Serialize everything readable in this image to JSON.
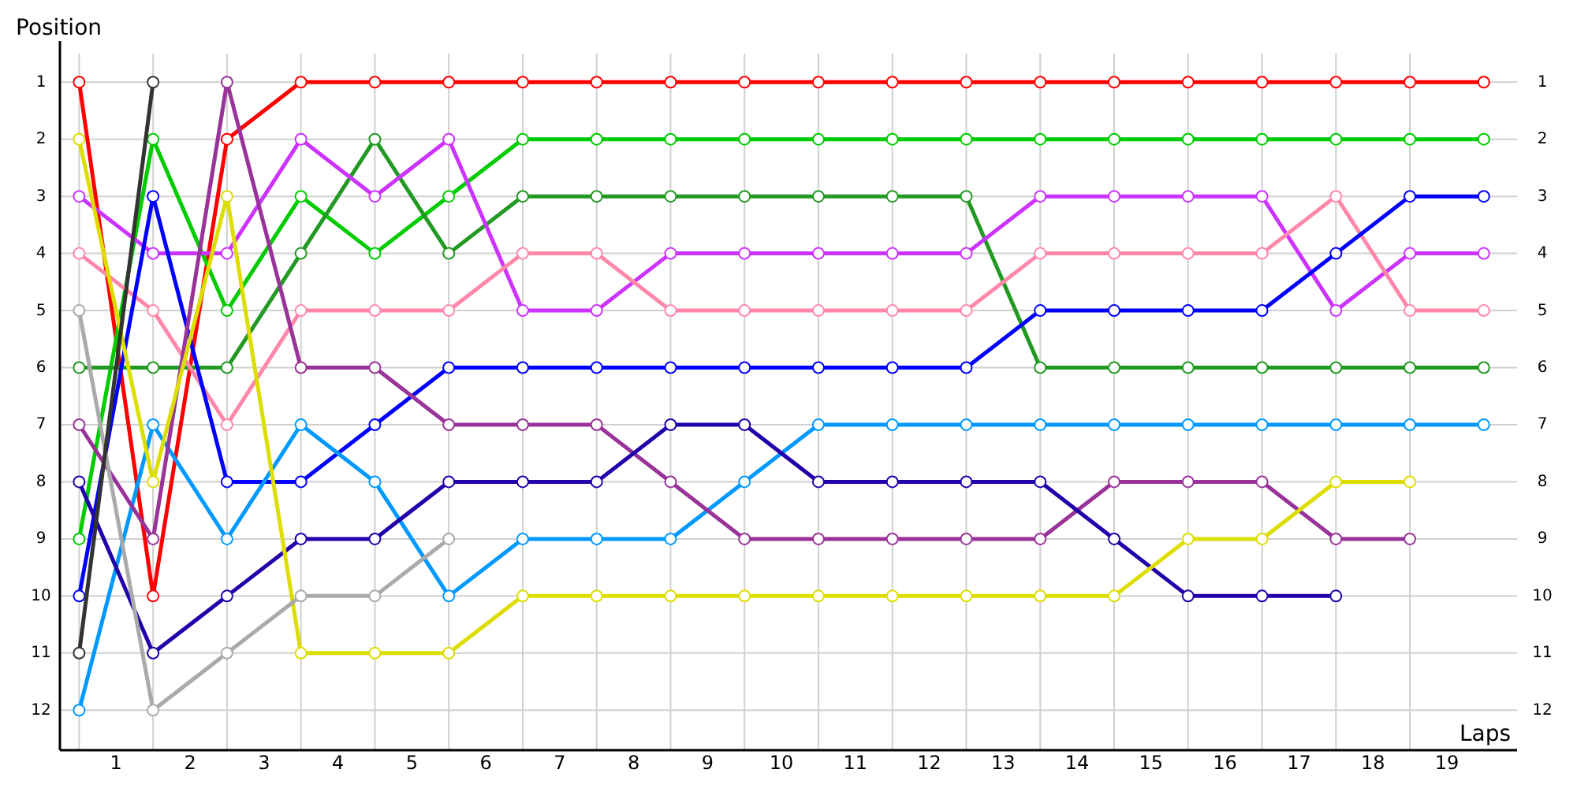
{
  "chart_data": {
    "type": "line",
    "xlabel": "Laps",
    "ylabel": "Position",
    "marker": "circle",
    "grid": true,
    "xlim": [
      -0.26,
      19.45
    ],
    "xticks": [
      {
        "value": 0,
        "label": null
      },
      {
        "value": 0.5,
        "label": "1"
      },
      {
        "value": 1,
        "label": null
      },
      {
        "value": 1.5,
        "label": "2"
      },
      {
        "value": 2,
        "label": null
      },
      {
        "value": 2.5,
        "label": "3"
      },
      {
        "value": 3,
        "label": null
      },
      {
        "value": 3.5,
        "label": "4"
      },
      {
        "value": 4,
        "label": null
      },
      {
        "value": 4.5,
        "label": "5"
      },
      {
        "value": 5,
        "label": null
      },
      {
        "value": 5.5,
        "label": "6"
      },
      {
        "value": 6,
        "label": null
      },
      {
        "value": 6.5,
        "label": "7"
      },
      {
        "value": 7,
        "label": null
      },
      {
        "value": 7.5,
        "label": "8"
      },
      {
        "value": 8,
        "label": null
      },
      {
        "value": 8.5,
        "label": "9"
      },
      {
        "value": 9,
        "label": null
      },
      {
        "value": 9.5,
        "label": "10"
      },
      {
        "value": 10,
        "label": null
      },
      {
        "value": 10.5,
        "label": "11"
      },
      {
        "value": 11,
        "label": null
      },
      {
        "value": 11.5,
        "label": "12"
      },
      {
        "value": 12,
        "label": null
      },
      {
        "value": 12.5,
        "label": "13"
      },
      {
        "value": 13,
        "label": null
      },
      {
        "value": 13.5,
        "label": "14"
      },
      {
        "value": 14,
        "label": null
      },
      {
        "value": 14.5,
        "label": "15"
      },
      {
        "value": 15,
        "label": null
      },
      {
        "value": 15.5,
        "label": "16"
      },
      {
        "value": 16,
        "label": null
      },
      {
        "value": 16.5,
        "label": "17"
      },
      {
        "value": 17,
        "label": null
      },
      {
        "value": 17.5,
        "label": "18"
      },
      {
        "value": 18,
        "label": null
      },
      {
        "value": 18.5,
        "label": "19"
      }
    ],
    "ylim": [
      12.7,
      0.5
    ],
    "yticks": [
      1,
      2,
      3,
      4,
      5,
      6,
      7,
      8,
      9,
      10,
      11,
      12
    ],
    "y2lim": [
      12.7,
      0.5
    ],
    "y2ticks": [
      1,
      2,
      3,
      4,
      5,
      6,
      7,
      8,
      9,
      10,
      11,
      12
    ],
    "x": [
      0,
      1,
      2,
      3,
      4,
      5,
      6,
      7,
      8,
      9,
      10,
      11,
      12,
      13,
      14,
      15,
      16,
      17,
      18,
      19
    ],
    "series": [
      {
        "color": "#ff0000",
        "values": [
          1,
          10,
          2,
          1,
          1,
          1,
          1,
          1,
          1,
          1,
          1,
          1,
          1,
          1,
          1,
          1,
          1,
          1,
          1,
          1
        ]
      },
      {
        "color": "#00cc00",
        "values": [
          9,
          2,
          5,
          3,
          4,
          3,
          2,
          2,
          2,
          2,
          2,
          2,
          2,
          2,
          2,
          2,
          2,
          2,
          2,
          2
        ]
      },
      {
        "color": "#229922",
        "values": [
          6,
          6,
          6,
          4,
          2,
          4,
          3,
          3,
          3,
          3,
          3,
          3,
          3,
          6,
          6,
          6,
          6,
          6,
          6,
          6
        ]
      },
      {
        "color": "#cc33ff",
        "values": [
          3,
          4,
          4,
          2,
          3,
          2,
          5,
          5,
          4,
          4,
          4,
          4,
          4,
          3,
          3,
          3,
          3,
          5,
          4,
          4
        ]
      },
      {
        "color": "#ff88aa",
        "values": [
          4,
          5,
          7,
          5,
          5,
          5,
          4,
          4,
          5,
          5,
          5,
          5,
          5,
          4,
          4,
          4,
          4,
          3,
          5,
          5
        ]
      },
      {
        "color": "#0000ff",
        "values": [
          10,
          3,
          8,
          8,
          7,
          6,
          6,
          6,
          6,
          6,
          6,
          6,
          6,
          5,
          5,
          5,
          5,
          4,
          3,
          3
        ]
      },
      {
        "color": "#0099ff",
        "values": [
          12,
          7,
          9,
          7,
          8,
          10,
          9,
          9,
          9,
          8,
          7,
          7,
          7,
          7,
          7,
          7,
          7,
          7,
          7,
          7
        ]
      },
      {
        "color": "#993399",
        "values": [
          7,
          9,
          1,
          6,
          6,
          7,
          7,
          7,
          8,
          9,
          9,
          9,
          9,
          9,
          8,
          8,
          8,
          9,
          9,
          null
        ]
      },
      {
        "color": "#2200aa",
        "values": [
          8,
          11,
          10,
          9,
          9,
          8,
          8,
          8,
          7,
          7,
          8,
          8,
          8,
          8,
          9,
          10,
          10,
          10,
          null,
          null
        ]
      },
      {
        "color": "#dddd00",
        "values": [
          2,
          8,
          3,
          11,
          11,
          11,
          10,
          10,
          10,
          10,
          10,
          10,
          10,
          10,
          10,
          9,
          9,
          8,
          8,
          null
        ]
      },
      {
        "color": "#aaaaaa",
        "values": [
          5,
          12,
          11,
          10,
          10,
          9,
          null,
          null,
          null,
          null,
          null,
          null,
          null,
          null,
          null,
          null,
          null,
          null,
          null,
          null
        ]
      },
      {
        "color": "#333333",
        "values": [
          11,
          1,
          null,
          null,
          null,
          null,
          null,
          null,
          null,
          null,
          null,
          null,
          null,
          null,
          null,
          null,
          null,
          null,
          null,
          null
        ]
      }
    ]
  }
}
